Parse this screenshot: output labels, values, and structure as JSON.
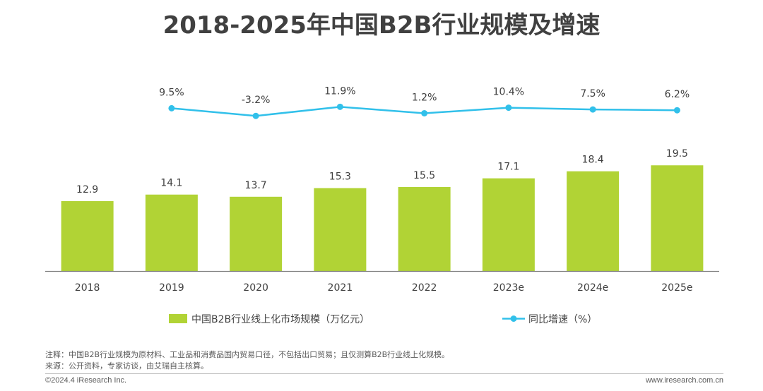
{
  "colors": {
    "bar": "#b1d335",
    "line": "#31c0ea",
    "text": "#404040",
    "axis": "#7f7f7f"
  },
  "chart_data": {
    "type": "bar",
    "title": "2018-2025年中国B2B行业规模及增速",
    "categories": [
      "2018",
      "2019",
      "2020",
      "2021",
      "2022",
      "2023e",
      "2024e",
      "2025e"
    ],
    "series": [
      {
        "name": "中国B2B行业线上化市场规模（万亿元）",
        "type": "bar",
        "values": [
          12.9,
          14.1,
          13.7,
          15.3,
          15.5,
          17.1,
          18.4,
          19.5
        ]
      },
      {
        "name": "同比增速（%）",
        "type": "line",
        "values": [
          null,
          9.5,
          -3.2,
          11.9,
          1.2,
          10.4,
          7.5,
          6.2
        ],
        "labels": [
          null,
          "9.5%",
          "-3.2%",
          "11.9%",
          "1.2%",
          "10.4%",
          "7.5%",
          "6.2%"
        ]
      }
    ],
    "legend_position": "bottom",
    "grid": false
  },
  "notes": {
    "note": "注释：中国B2B行业规模为原材料、工业品和消费品国内贸易口径，不包括出口贸易；且仅测算B2B行业线上化规模。",
    "source": "来源：公开资料，专家访谈，由艾瑞自主核算。"
  },
  "footer": {
    "copyright": "©2024.4 iResearch Inc.",
    "website": "www.iresearch.com.cn"
  }
}
